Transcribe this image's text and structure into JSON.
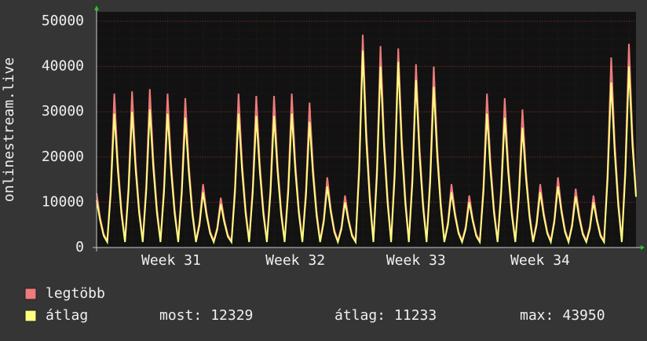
{
  "chart_data": {
    "type": "line",
    "y_label": "onlinestream.live",
    "categories": [
      null,
      null,
      null,
      null,
      null,
      null,
      null,
      null,
      null,
      null,
      null,
      null,
      null,
      null,
      null,
      null,
      null,
      null,
      null,
      null,
      null,
      "Week 31",
      null,
      null,
      null,
      null,
      null,
      null,
      null,
      null,
      null,
      null,
      null,
      null,
      null,
      null,
      null,
      null,
      null,
      null,
      null,
      null,
      null,
      null,
      null,
      null,
      null,
      null,
      null,
      null,
      null,
      null,
      null,
      null,
      null,
      null,
      "Week 32",
      null,
      null,
      null,
      null,
      null,
      null,
      null,
      null,
      null,
      null,
      null,
      null,
      null,
      null,
      null,
      null,
      null,
      null,
      null,
      null,
      null,
      null,
      null,
      null,
      null,
      null,
      null,
      null,
      null,
      null,
      null,
      null,
      null,
      "Week 33",
      null,
      null,
      null,
      null,
      null,
      null,
      null,
      null,
      null,
      null,
      null,
      null,
      null,
      null,
      null,
      null,
      null,
      null,
      null,
      null,
      null,
      null,
      null,
      null,
      null,
      null,
      null,
      null,
      null,
      null,
      null,
      null,
      null,
      null,
      "Week 34",
      null,
      null,
      null,
      null,
      null,
      null,
      null,
      null,
      null,
      null,
      null,
      null,
      null,
      null,
      null,
      null,
      null,
      null,
      null,
      null,
      null,
      null,
      null,
      null,
      null,
      null,
      null
    ],
    "series": [
      {
        "name": "legtöbb",
        "color": "#f07b7b",
        "values": [
          12000,
          6600,
          3000,
          1500,
          13600,
          34000,
          18700,
          8500,
          1500,
          13800,
          34500,
          19000,
          8600,
          1500,
          14000,
          35000,
          19300,
          8800,
          1500,
          13600,
          34000,
          18700,
          8500,
          1500,
          13200,
          33000,
          18200,
          8300,
          1500,
          5600,
          14000,
          7700,
          3500,
          1500,
          4400,
          11000,
          6100,
          2800,
          1500,
          13600,
          34000,
          18700,
          8500,
          1500,
          13400,
          33500,
          18400,
          8400,
          1500,
          13400,
          33500,
          18400,
          8400,
          1500,
          13600,
          34000,
          18700,
          8500,
          1500,
          12800,
          32000,
          17600,
          8000,
          1500,
          6200,
          15500,
          8500,
          3900,
          1500,
          4600,
          11500,
          6300,
          2900,
          1500,
          18800,
          47000,
          25900,
          11800,
          1500,
          17800,
          44500,
          24500,
          11100,
          1500,
          17600,
          44000,
          24200,
          11000,
          1500,
          16200,
          40500,
          22300,
          10100,
          1500,
          16000,
          40000,
          22000,
          10000,
          1500,
          5600,
          14000,
          7700,
          3500,
          1500,
          4600,
          11500,
          6300,
          2900,
          1500,
          13600,
          34000,
          18700,
          8500,
          1500,
          13200,
          33000,
          18200,
          8300,
          1500,
          12200,
          30500,
          16800,
          7600,
          1500,
          5600,
          14000,
          7700,
          3500,
          1500,
          6200,
          15500,
          8500,
          3900,
          1500,
          5200,
          13000,
          7200,
          3300,
          1500,
          4600,
          11500,
          6300,
          2900,
          1500,
          16800,
          42000,
          23100,
          10500,
          1500,
          18000,
          45000,
          24800,
          12000
        ]
      },
      {
        "name": "átlag",
        "color": "#ffff80",
        "values": [
          10400,
          6000,
          2600,
          1200,
          12200,
          29600,
          17000,
          7500,
          1200,
          12400,
          30000,
          17300,
          7600,
          1200,
          12600,
          30500,
          17500,
          7700,
          1200,
          12200,
          29600,
          17000,
          7500,
          1200,
          11900,
          28700,
          16500,
          7300,
          1200,
          5000,
          12200,
          7000,
          3100,
          1200,
          4000,
          9600,
          5500,
          2400,
          1200,
          12200,
          29600,
          17000,
          7500,
          1200,
          12100,
          29100,
          16800,
          7400,
          1200,
          12100,
          29100,
          16800,
          7400,
          1200,
          12200,
          29600,
          17000,
          7500,
          1200,
          11500,
          27800,
          16000,
          7000,
          1200,
          5600,
          13500,
          7800,
          3400,
          1200,
          4100,
          10000,
          5800,
          2500,
          1200,
          16900,
          43500,
          23500,
          10300,
          1200,
          16000,
          40000,
          22300,
          9800,
          1200,
          15800,
          41000,
          22000,
          9700,
          1200,
          14600,
          37000,
          20300,
          8900,
          1200,
          14400,
          35500,
          20000,
          8800,
          1200,
          5000,
          12200,
          7000,
          3100,
          1200,
          4100,
          10000,
          5800,
          2500,
          1200,
          12200,
          29600,
          17000,
          7500,
          1200,
          11900,
          28700,
          16500,
          7300,
          1200,
          11000,
          26500,
          15300,
          6700,
          1200,
          5000,
          12200,
          7000,
          3100,
          1200,
          5600,
          13500,
          7800,
          3400,
          1200,
          4700,
          11300,
          6500,
          2900,
          1200,
          4100,
          10000,
          5800,
          2500,
          1200,
          15100,
          36500,
          21000,
          9200,
          1200,
          16200,
          40000,
          22500,
          11200
        ]
      }
    ],
    "ylim": [
      0,
      50000
    ],
    "yticks": [
      0,
      10000,
      20000,
      30000,
      40000,
      50000
    ],
    "grid": true,
    "stats": [
      {
        "label": "most:",
        "value": 12329
      },
      {
        "label": "átlag:",
        "value": 11233
      },
      {
        "label": "max:",
        "value": 43950
      }
    ]
  }
}
